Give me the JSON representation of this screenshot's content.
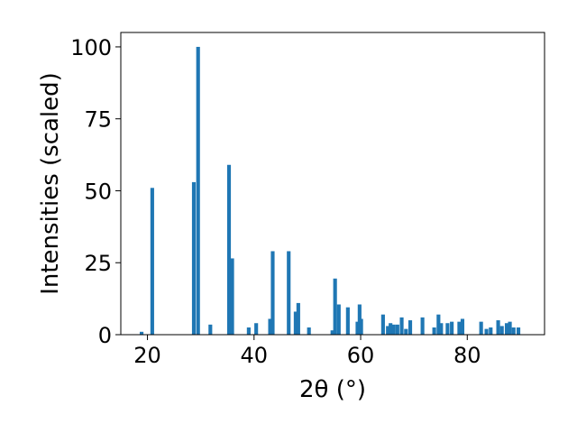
{
  "chart_data": {
    "type": "bar",
    "xlabel": "2θ (°)",
    "ylabel": "Intensities (scaled)",
    "xlim": [
      15,
      94.5
    ],
    "ylim": [
      0,
      105
    ],
    "x_ticks": [
      20,
      40,
      60,
      80
    ],
    "y_ticks": [
      0,
      25,
      50,
      75,
      100
    ],
    "grid": false,
    "bar_color": "#1f77b4",
    "bar_width": 0.7,
    "x": [
      18.9,
      20.9,
      28.7,
      29.5,
      31.8,
      35.3,
      35.9,
      39.0,
      40.4,
      43.0,
      43.5,
      46.5,
      47.8,
      48.3,
      50.3,
      54.7,
      55.2,
      55.9,
      57.6,
      59.4,
      59.8,
      60.1,
      64.2,
      65.1,
      65.6,
      66.2,
      66.9,
      67.7,
      68.5,
      69.3,
      71.6,
      73.8,
      74.6,
      75.1,
      76.3,
      77.1,
      78.5,
      79.1,
      82.6,
      83.6,
      84.4,
      85.8,
      86.5,
      87.4,
      88.0,
      88.7,
      89.6
    ],
    "values": [
      1.0,
      51.0,
      53.0,
      100.0,
      3.5,
      59.0,
      26.5,
      2.5,
      4.0,
      5.5,
      29.0,
      29.0,
      8.0,
      11.0,
      2.5,
      1.5,
      19.5,
      10.5,
      9.5,
      4.5,
      10.5,
      5.5,
      7.0,
      3.0,
      4.0,
      3.5,
      3.5,
      6.0,
      2.0,
      5.0,
      6.0,
      2.5,
      7.0,
      4.0,
      4.0,
      4.5,
      4.5,
      5.5,
      4.5,
      2.0,
      2.5,
      5.0,
      3.0,
      4.0,
      4.5,
      2.5,
      2.5
    ]
  }
}
